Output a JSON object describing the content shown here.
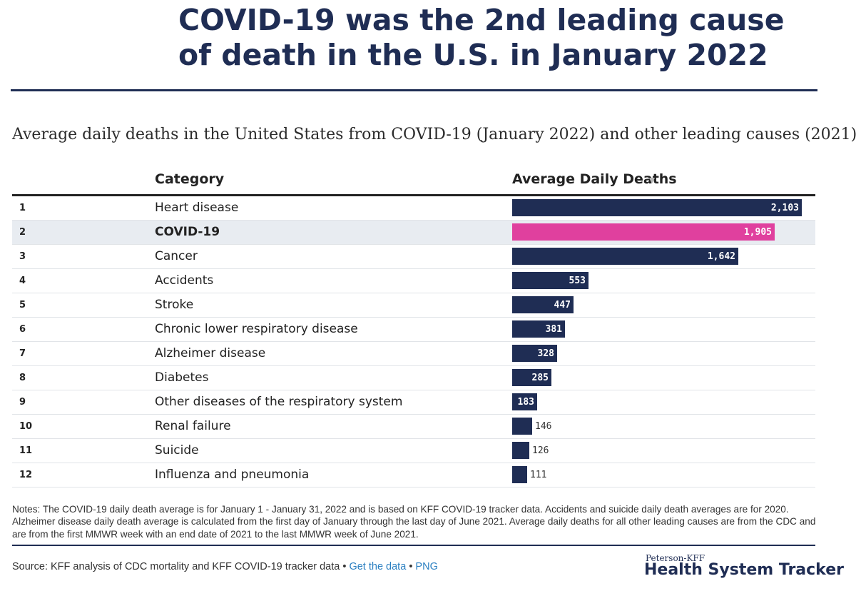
{
  "headline": {
    "line1": "COVID-19 was the 2nd leading cause",
    "line2": "of death in the U.S. in January 2022"
  },
  "chart_data": {
    "type": "bar",
    "orientation": "horizontal",
    "title": "Average daily deaths in the United States from COVID-19 (January 2022) and other leading causes (2021)",
    "columns": {
      "rank": "",
      "category": "Category",
      "value": "Average Daily Deaths"
    },
    "sort": "descending",
    "highlight_color": "#e0409e",
    "bar_color": "#1f2d54",
    "rows": [
      {
        "rank": "1",
        "category": "Heart disease",
        "value": 2103,
        "label": "2,103"
      },
      {
        "rank": "2",
        "category": "COVID-19",
        "value": 1905,
        "label": "1,905",
        "highlight": true
      },
      {
        "rank": "3",
        "category": "Cancer",
        "value": 1642,
        "label": "1,642"
      },
      {
        "rank": "4",
        "category": "Accidents",
        "value": 553,
        "label": "553"
      },
      {
        "rank": "5",
        "category": "Stroke",
        "value": 447,
        "label": "447"
      },
      {
        "rank": "6",
        "category": "Chronic lower respiratory disease",
        "value": 381,
        "label": "381"
      },
      {
        "rank": "7",
        "category": "Alzheimer disease",
        "value": 328,
        "label": "328"
      },
      {
        "rank": "8",
        "category": "Diabetes",
        "value": 285,
        "label": "285"
      },
      {
        "rank": "9",
        "category": "Other diseases of the respiratory system",
        "value": 183,
        "label": "183"
      },
      {
        "rank": "10",
        "category": "Renal failure",
        "value": 146,
        "label": "146"
      },
      {
        "rank": "11",
        "category": "Suicide",
        "value": 126,
        "label": "126"
      },
      {
        "rank": "12",
        "category": "Influenza and pneumonia",
        "value": 111,
        "label": "111"
      }
    ]
  },
  "notes": "Notes: The COVID-19 daily death average is for January 1 - January 31, 2022 and is based on KFF COVID-19 tracker data. Accidents and suicide daily death averages are for 2020. Alzheimer disease daily death average is calculated from the first day of January through the last day of June 2021. Average daily deaths for all other leading causes are from the CDC and are from the first MMWR week with an end date of 2021 to the last MMWR week of June 2021.",
  "source": {
    "text": "Source: KFF analysis of CDC mortality and KFF COVID-19 tracker data",
    "sep": "•",
    "link_data": "Get the data",
    "link_png": "PNG"
  },
  "brand": {
    "top": "Peterson-KFF",
    "main": "Health System Tracker"
  }
}
